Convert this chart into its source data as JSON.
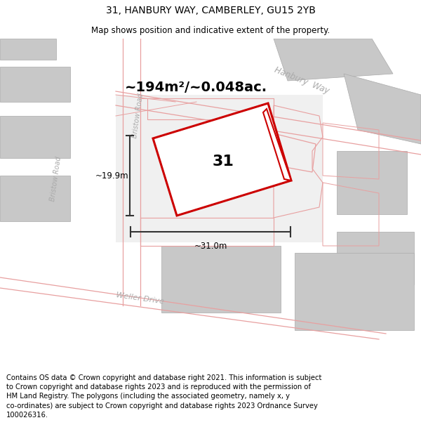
{
  "title": "31, HANBURY WAY, CAMBERLEY, GU15 2YB",
  "subtitle": "Map shows position and indicative extent of the property.",
  "footer": "Contains OS data © Crown copyright and database right 2021. This information is subject\nto Crown copyright and database rights 2023 and is reproduced with the permission of\nHM Land Registry. The polygons (including the associated geometry, namely x, y\nco-ordinates) are subject to Crown copyright and database rights 2023 Ordnance Survey\n100026316.",
  "title_fontsize": 10,
  "subtitle_fontsize": 8.5,
  "footer_fontsize": 7.2,
  "red_color": "#cc0000",
  "light_red": "#e8a0a0",
  "gray_block": "#c8c8c8",
  "road_white": "#ffffff",
  "map_bg": "#ebebeb",
  "area_text": "~194m²/~0.048ac.",
  "dim_h_text": "~19.9m",
  "dim_w_text": "~31.0m",
  "label_31": "31"
}
